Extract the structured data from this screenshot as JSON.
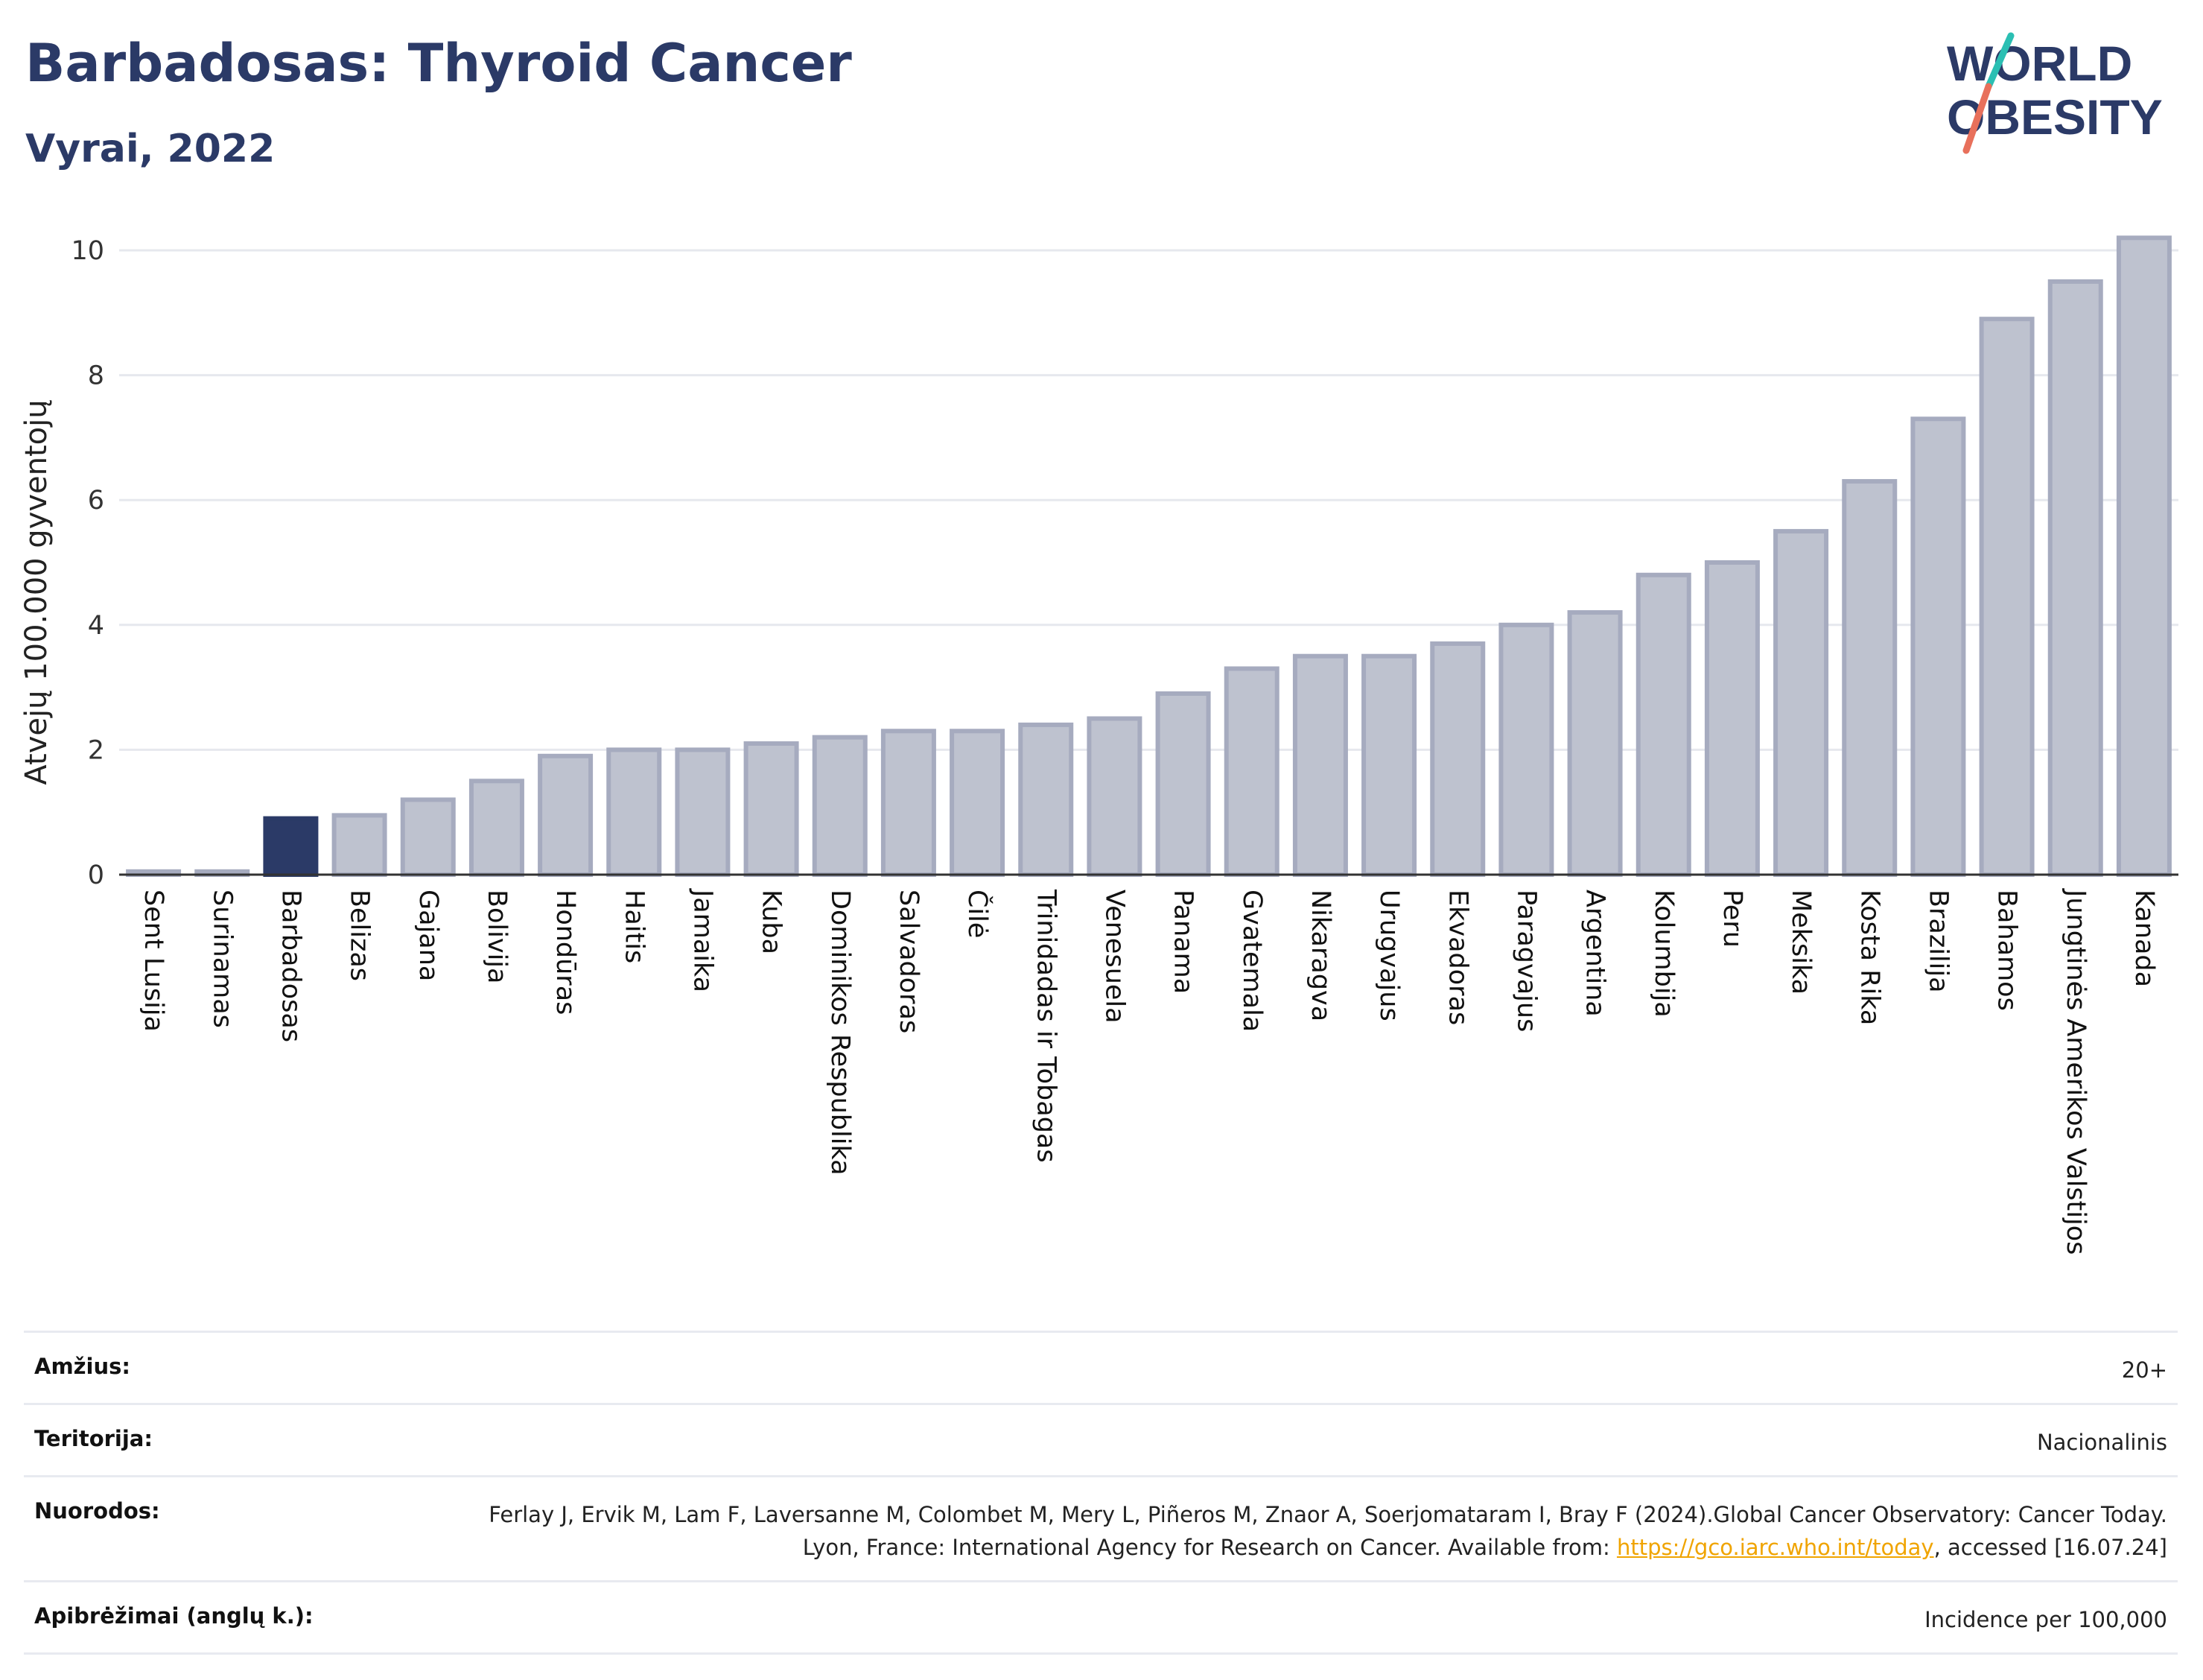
{
  "header": {
    "title": "Barbadosas: Thyroid Cancer",
    "subtitle": "Vyrai, 2022"
  },
  "logo": {
    "line1": "WORLD",
    "line2": "OBESITY",
    "colors": {
      "text": "#2b3a67",
      "slash_top": "#2bbfb3",
      "slash_bottom": "#e8705b"
    }
  },
  "colors": {
    "highlight": "#2b3a67",
    "bar_fill": "#bec2cf",
    "bar_stroke": "#a6abbf"
  },
  "chart_data": {
    "type": "bar",
    "ylabel": "Atvejų 100.000 gyventojų",
    "xlabel": "",
    "ylim": [
      0,
      10.5
    ],
    "yticks": [
      0,
      2,
      4,
      6,
      8,
      10
    ],
    "grid": true,
    "highlight": "Barbadosas",
    "categories": [
      "Sent Lusija",
      "Surinamas",
      "Barbadosas",
      "Belizas",
      "Gajana",
      "Bolivija",
      "Hondūras",
      "Haitis",
      "Jamaika",
      "Kuba",
      "Dominikos Respublika",
      "Salvadoras",
      "Čilė",
      "Trinidadas ir Tobagas",
      "Venesuela",
      "Panama",
      "Gvatemala",
      "Nikaragva",
      "Urugvajus",
      "Ekvadoras",
      "Paragvajus",
      "Argentina",
      "Kolumbija",
      "Peru",
      "Meksika",
      "Kosta Rika",
      "Brazilija",
      "Bahamos",
      "Jungtinės Amerikos Valstijos",
      "Kanada"
    ],
    "values": [
      0.05,
      0.05,
      0.9,
      0.95,
      1.2,
      1.5,
      1.9,
      2.0,
      2.0,
      2.1,
      2.2,
      2.3,
      2.3,
      2.4,
      2.5,
      2.9,
      3.3,
      3.5,
      3.5,
      3.7,
      4.0,
      4.2,
      4.8,
      5.0,
      5.5,
      6.3,
      7.3,
      8.9,
      9.5,
      10.2
    ]
  },
  "meta": {
    "age_label": "Amžius:",
    "age_value": "20+",
    "territory_label": "Teritorija:",
    "territory_value": "Nacionalinis",
    "refs_label": "Nuorodos:",
    "refs_text1": "Ferlay J, Ervik M, Lam F, Laversanne M, Colombet M, Mery L, Piñeros M, Znaor A, Soerjomataram I, Bray F (2024).Global Cancer Observatory: Cancer Today. Lyon, France: International Agency for Research on Cancer. Available from: ",
    "refs_link": "https://gco.iarc.who.int/today",
    "refs_text2": ", accessed [16.07.24]",
    "defs_label": "Apibrėžimai (anglų k.):",
    "defs_value": "Incidence per 100,000"
  }
}
